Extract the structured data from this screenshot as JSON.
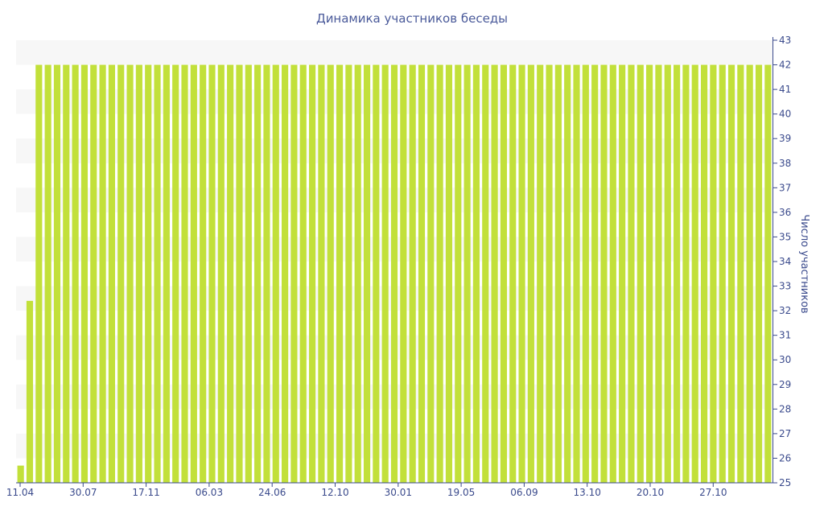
{
  "chart_data": {
    "type": "bar",
    "title": "Динамика участников беседы",
    "xlabel": "",
    "ylabel": "Число участников",
    "x_tick_labels": [
      "11.04",
      "30.07",
      "17.11",
      "06.03",
      "24.06",
      "12.10",
      "30.01",
      "19.05",
      "06.09",
      "13.10",
      "20.10",
      "27.10"
    ],
    "ylim": [
      25,
      43
    ],
    "y_ticks": [
      25,
      26,
      27,
      28,
      29,
      30,
      31,
      32,
      33,
      34,
      35,
      36,
      37,
      38,
      39,
      40,
      41,
      42,
      43
    ],
    "y_axis_side": "right",
    "grid": "alternating-horizontal-bands",
    "legend": "none",
    "bar_color": "#c2e03a",
    "axis_color": "#3a4a8c",
    "band_color": "#f7f7f7",
    "series": [
      {
        "values": [
          25.7,
          32.4,
          42,
          42,
          42,
          42,
          42,
          42,
          42,
          42,
          42,
          42,
          42,
          42,
          42,
          42,
          42,
          42,
          42,
          42,
          42,
          42,
          42,
          42,
          42,
          42,
          42,
          42,
          42,
          42,
          42,
          42,
          42,
          42,
          42,
          42,
          42,
          42,
          42,
          42,
          42,
          42,
          42,
          42,
          42,
          42,
          42,
          42,
          42,
          42,
          42,
          42,
          42,
          42,
          42,
          42,
          42,
          42,
          42,
          42,
          42,
          42,
          42,
          42,
          42,
          42,
          42,
          42,
          42,
          42,
          42,
          42,
          42,
          42,
          42,
          42,
          42,
          42,
          42,
          42,
          42,
          42,
          42
        ]
      }
    ]
  }
}
